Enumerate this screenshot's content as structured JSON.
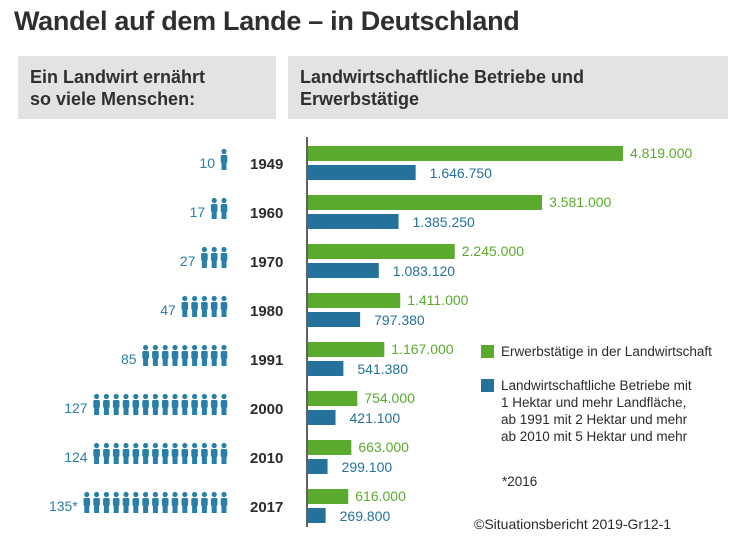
{
  "title": "Wandel auf dem Lande – in Deutschland",
  "header_left": {
    "line1": "Ein Landwirt ernährt",
    "line2": "so viele Menschen:"
  },
  "header_right": {
    "line1": "Landwirtschaftliche Betriebe und",
    "line2": "Erwerbstätige"
  },
  "legend": {
    "green": "Erwerbstätige in der Landwirtschaft",
    "blue_lines": [
      "Landwirtschaftliche Betriebe mit",
      "1 Hektar und mehr Landfläche,",
      "ab 1991 mit 2 Hektar und mehr",
      "ab 2010 mit 5 Hektar und mehr"
    ]
  },
  "footnote": "*2016",
  "source": "©Situationsbericht 2019-Gr12-1",
  "colors": {
    "green": "#5aaa2d",
    "blue": "#24729a",
    "icon": "#2a7fa8",
    "header_bg": "#e3e3e3"
  },
  "chart_data": {
    "type": "bar",
    "title": "Landwirtschaftliche Betriebe und Erwerbstätige",
    "categories": [
      "1949",
      "1960",
      "1970",
      "1980",
      "1991",
      "2000",
      "2010",
      "2017"
    ],
    "series": [
      {
        "name": "Erwerbstätige in der Landwirtschaft",
        "values": [
          4819000,
          3581000,
          2245000,
          1411000,
          1167000,
          754000,
          663000,
          616000
        ],
        "labels": [
          "4.819.000",
          "3.581.000",
          "2.245.000",
          "1.411.000",
          "1.167.000",
          "754.000",
          "663.000",
          "616.000"
        ]
      },
      {
        "name": "Landwirtschaftliche Betriebe",
        "values": [
          1646750,
          1385250,
          1083120,
          797380,
          541380,
          421100,
          299100,
          269800
        ],
        "labels": [
          "1.646.750",
          "1.385.250",
          "1.083.120",
          "797.380",
          "541.380",
          "421.100",
          "299.100",
          "269.800"
        ]
      }
    ],
    "people_fed": {
      "title": "Ein Landwirt ernährt so viele Menschen:",
      "values": [
        10,
        17,
        27,
        47,
        85,
        127,
        124,
        135
      ],
      "labels": [
        "10",
        "17",
        "27",
        "47",
        "85",
        "127",
        "124",
        "135*"
      ],
      "icon_counts": [
        1,
        2,
        3,
        5,
        9,
        14,
        14,
        15
      ]
    }
  }
}
